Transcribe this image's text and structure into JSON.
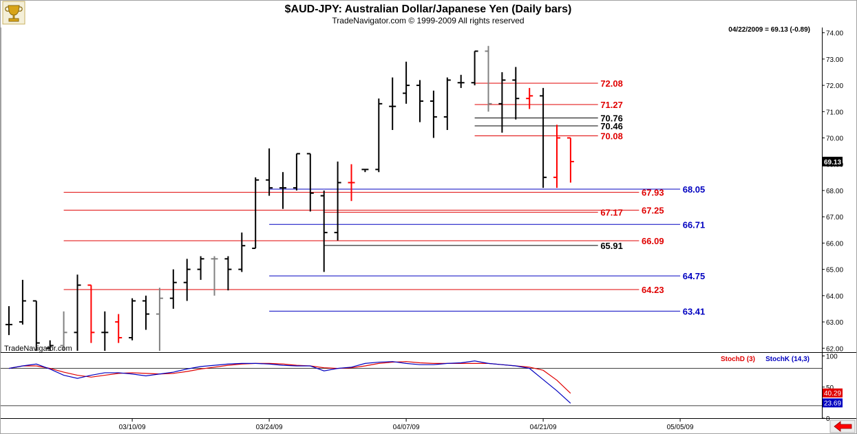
{
  "header": {
    "title": "$AUD-JPY:  Australian Dollar/Japanese Yen  (Daily bars)",
    "subtitle": "TradeNavigator.com © 1999-2009 All rights reserved",
    "watermark": "TradeNavigator.com",
    "logo_icon": "trophy-icon"
  },
  "colors": {
    "up_bar": "#000000",
    "down_bar": "#ff0000",
    "neutral_bar": "#808080",
    "red_line": "#e00000",
    "blue_line": "#0000c0",
    "black_line": "#000000",
    "stochD": "#e00000",
    "stochK": "#0000c0",
    "scroll_arrow": "#ff0000"
  },
  "chart_data": [
    {
      "type": "ohlc",
      "title": "$AUD-JPY:  Australian Dollar/Japanese Yen  (Daily bars)",
      "price_readout": "04/22/2009 = 69.13 (-0.89)",
      "last_price_label": "69.13",
      "ylim": [
        61.85,
        74.2
      ],
      "y_ticks": [
        "74.00",
        "73.00",
        "72.00",
        "71.00",
        "70.00",
        "69.00",
        "68.00",
        "67.00",
        "66.00",
        "65.00",
        "64.00",
        "63.00",
        "62.00"
      ],
      "x_ticks": [
        {
          "label": "03/10/09",
          "bar": 9
        },
        {
          "label": "03/24/09",
          "bar": 19
        },
        {
          "label": "04/07/09",
          "bar": 29
        },
        {
          "label": "04/21/09",
          "bar": 39
        },
        {
          "label": "05/05/09",
          "bar": 49
        }
      ],
      "bars": [
        {
          "o": 62.9,
          "h": 63.6,
          "l": 62.5,
          "c": 62.9,
          "d": "up"
        },
        {
          "o": 63.0,
          "h": 64.6,
          "l": 62.9,
          "c": 63.8,
          "d": "up"
        },
        {
          "o": 63.8,
          "h": 63.8,
          "l": 61.9,
          "c": 62.2,
          "d": "up"
        },
        {
          "o": 62.0,
          "h": 62.3,
          "l": 61.9,
          "c": 62.1,
          "d": "up"
        },
        {
          "o": 62.1,
          "h": 63.4,
          "l": 61.9,
          "c": 62.6,
          "d": "neutral"
        },
        {
          "o": 62.6,
          "h": 64.8,
          "l": 61.9,
          "c": 64.4,
          "d": "up"
        },
        {
          "o": 64.4,
          "h": 64.4,
          "l": 62.2,
          "c": 62.6,
          "d": "down"
        },
        {
          "o": 62.6,
          "h": 63.4,
          "l": 61.9,
          "c": 62.6,
          "d": "up"
        },
        {
          "o": 63.0,
          "h": 63.3,
          "l": 62.2,
          "c": 62.4,
          "d": "down"
        },
        {
          "o": 62.4,
          "h": 63.9,
          "l": 62.3,
          "c": 63.8,
          "d": "up"
        },
        {
          "o": 63.8,
          "h": 64.0,
          "l": 62.7,
          "c": 63.3,
          "d": "up"
        },
        {
          "o": 63.3,
          "h": 64.3,
          "l": 61.9,
          "c": 63.9,
          "d": "neutral"
        },
        {
          "o": 63.9,
          "h": 65.0,
          "l": 63.5,
          "c": 64.5,
          "d": "up"
        },
        {
          "o": 64.5,
          "h": 65.4,
          "l": 63.8,
          "c": 65.0,
          "d": "up"
        },
        {
          "o": 65.0,
          "h": 65.5,
          "l": 64.6,
          "c": 65.4,
          "d": "up"
        },
        {
          "o": 65.4,
          "h": 65.5,
          "l": 64.0,
          "c": 65.4,
          "d": "neutral"
        },
        {
          "o": 65.4,
          "h": 65.5,
          "l": 64.2,
          "c": 65.0,
          "d": "up"
        },
        {
          "o": 65.0,
          "h": 66.4,
          "l": 64.9,
          "c": 65.9,
          "d": "up"
        },
        {
          "o": 65.8,
          "h": 68.5,
          "l": 65.8,
          "c": 68.4,
          "d": "up"
        },
        {
          "o": 68.4,
          "h": 69.6,
          "l": 67.8,
          "c": 68.1,
          "d": "up"
        },
        {
          "o": 68.1,
          "h": 68.7,
          "l": 67.3,
          "c": 68.1,
          "d": "up"
        },
        {
          "o": 68.1,
          "h": 69.4,
          "l": 68.0,
          "c": 69.4,
          "d": "up"
        },
        {
          "o": 69.4,
          "h": 69.4,
          "l": 67.2,
          "c": 67.9,
          "d": "up"
        },
        {
          "o": 67.8,
          "h": 68.0,
          "l": 64.9,
          "c": 66.4,
          "d": "up"
        },
        {
          "o": 66.4,
          "h": 69.1,
          "l": 66.1,
          "c": 68.3,
          "d": "up"
        },
        {
          "o": 68.3,
          "h": 69.0,
          "l": 67.6,
          "c": 68.3,
          "d": "down"
        },
        {
          "o": 68.8,
          "h": 68.8,
          "l": 68.7,
          "c": 68.8,
          "d": "up"
        },
        {
          "o": 68.8,
          "h": 71.5,
          "l": 68.7,
          "c": 71.3,
          "d": "up"
        },
        {
          "o": 71.2,
          "h": 72.3,
          "l": 70.3,
          "c": 71.2,
          "d": "up"
        },
        {
          "o": 71.7,
          "h": 72.9,
          "l": 71.3,
          "c": 72.0,
          "d": "up"
        },
        {
          "o": 72.0,
          "h": 72.2,
          "l": 70.6,
          "c": 71.4,
          "d": "up"
        },
        {
          "o": 71.4,
          "h": 71.8,
          "l": 70.0,
          "c": 70.8,
          "d": "up"
        },
        {
          "o": 70.8,
          "h": 72.3,
          "l": 70.3,
          "c": 72.2,
          "d": "up"
        },
        {
          "o": 72.1,
          "h": 72.4,
          "l": 71.9,
          "c": 72.1,
          "d": "up"
        },
        {
          "o": 72.1,
          "h": 73.3,
          "l": 72.0,
          "c": 73.3,
          "d": "up"
        },
        {
          "o": 73.3,
          "h": 73.5,
          "l": 71.0,
          "c": 71.3,
          "d": "neutral"
        },
        {
          "o": 71.3,
          "h": 72.5,
          "l": 70.2,
          "c": 72.2,
          "d": "up"
        },
        {
          "o": 72.2,
          "h": 72.7,
          "l": 70.7,
          "c": 71.5,
          "d": "up"
        },
        {
          "o": 71.5,
          "h": 71.9,
          "l": 71.1,
          "c": 71.6,
          "d": "down"
        },
        {
          "o": 71.6,
          "h": 71.9,
          "l": 68.1,
          "c": 68.5,
          "d": "up"
        },
        {
          "o": 68.5,
          "h": 70.5,
          "l": 68.1,
          "c": 70.0,
          "d": "down"
        },
        {
          "o": 70.0,
          "h": 70.0,
          "l": 68.3,
          "c": 69.1,
          "d": "down"
        }
      ],
      "levels": [
        {
          "value": 72.08,
          "label": "72.08",
          "color": "red",
          "from_bar": 34,
          "to_bar": 43,
          "label_bar": 44
        },
        {
          "value": 71.27,
          "label": "71.27",
          "color": "red",
          "from_bar": 34,
          "to_bar": 43,
          "label_bar": 44
        },
        {
          "value": 70.76,
          "label": "70.76",
          "color": "black",
          "from_bar": 34,
          "to_bar": 43,
          "label_bar": 44
        },
        {
          "value": 70.46,
          "label": "70.46",
          "color": "black",
          "from_bar": 34,
          "to_bar": 43,
          "label_bar": 44
        },
        {
          "value": 70.08,
          "label": "70.08",
          "color": "red",
          "from_bar": 34,
          "to_bar": 43,
          "label_bar": 44
        },
        {
          "value": 68.05,
          "label": "68.05",
          "color": "blue",
          "from_bar": 19,
          "to_bar": 49,
          "label_bar": 50
        },
        {
          "value": 67.93,
          "label": "67.93",
          "color": "red",
          "from_bar": 4,
          "to_bar": 46,
          "label_bar": 47
        },
        {
          "value": 67.25,
          "label": "67.25",
          "color": "red",
          "from_bar": 4,
          "to_bar": 46,
          "label_bar": 47
        },
        {
          "value": 67.17,
          "label": "67.17",
          "color": "red",
          "from_bar": 23,
          "to_bar": 43,
          "label_bar": 44
        },
        {
          "value": 66.71,
          "label": "66.71",
          "color": "blue",
          "from_bar": 19,
          "to_bar": 49,
          "label_bar": 50
        },
        {
          "value": 66.09,
          "label": "66.09",
          "color": "red",
          "from_bar": 4,
          "to_bar": 46,
          "label_bar": 47
        },
        {
          "value": 65.91,
          "label": "65.91",
          "color": "black",
          "from_bar": 23,
          "to_bar": 43,
          "label_bar": 44
        },
        {
          "value": 64.75,
          "label": "64.75",
          "color": "blue",
          "from_bar": 19,
          "to_bar": 49,
          "label_bar": 50
        },
        {
          "value": 64.23,
          "label": "64.23",
          "color": "red",
          "from_bar": 4,
          "to_bar": 46,
          "label_bar": 47
        },
        {
          "value": 63.41,
          "label": "63.41",
          "color": "blue",
          "from_bar": 19,
          "to_bar": 49,
          "label_bar": 50
        }
      ]
    },
    {
      "type": "line",
      "ylim": [
        0,
        105
      ],
      "y_ticks": [
        "100",
        "50",
        "0"
      ],
      "reference_lines": [
        80,
        20
      ],
      "legend": [
        {
          "name": "StochD (3)",
          "color": "red"
        },
        {
          "name": "StochK (14,3)",
          "color": "blue"
        }
      ],
      "end_labels": {
        "d": "40.29",
        "k": "23.69"
      },
      "series": [
        {
          "name": "StochD (3)",
          "color": "red",
          "values": [
            80,
            84,
            84,
            80,
            74,
            69,
            66,
            69,
            72,
            73,
            72,
            71,
            72,
            75,
            79,
            82,
            85,
            87,
            88,
            88,
            87,
            85,
            84,
            81,
            80,
            81,
            84,
            88,
            90,
            91,
            89,
            88,
            88,
            88,
            88,
            88,
            86,
            84,
            82,
            77,
            61,
            40
          ]
        },
        {
          "name": "StochK (14,3)",
          "color": "blue",
          "values": [
            80,
            84,
            87,
            79,
            69,
            64,
            69,
            73,
            73,
            71,
            68,
            71,
            74,
            79,
            83,
            85,
            87,
            88,
            88,
            87,
            85,
            84,
            84,
            76,
            80,
            82,
            88,
            90,
            91,
            88,
            86,
            86,
            88,
            89,
            92,
            88,
            86,
            84,
            80,
            62,
            44,
            24
          ]
        }
      ]
    }
  ]
}
